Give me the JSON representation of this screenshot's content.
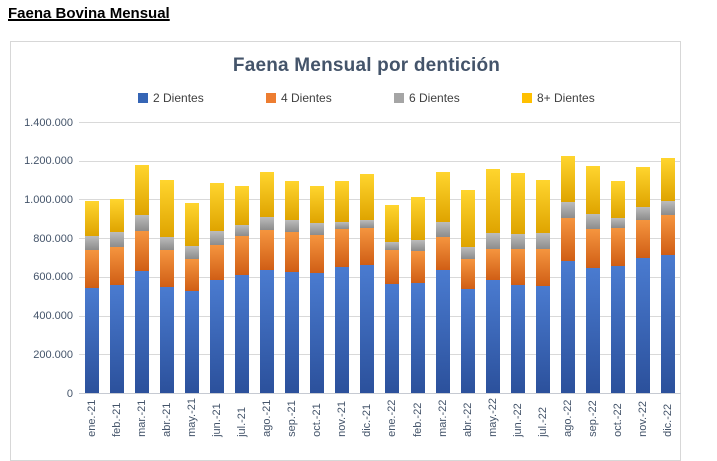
{
  "page": {
    "title": "Faena Bovina Mensual"
  },
  "chart": {
    "title": "Faena Mensual por dentición"
  },
  "chart_data": {
    "type": "bar",
    "stacked": true,
    "title": "Faena Mensual por dentición",
    "xlabel": "",
    "ylabel": "",
    "ylim": [
      0,
      1400000
    ],
    "grid": true,
    "legend_position": "top",
    "categories": [
      "ene.-21",
      "feb.-21",
      "mar.-21",
      "abr.-21",
      "may.-21",
      "jun.-21",
      "jul.-21",
      "ago.-21",
      "sep.-21",
      "oct.-21",
      "nov.-21",
      "dic.-21",
      "ene.-22",
      "feb.-22",
      "mar.-22",
      "abr.-22",
      "may.-22",
      "jun.-22",
      "jul.-22",
      "ago.-22",
      "sep.-22",
      "oct.-22",
      "nov.-22",
      "dic.-22"
    ],
    "y_ticks": [
      {
        "value": 0,
        "label": "0"
      },
      {
        "value": 200000,
        "label": "200.000"
      },
      {
        "value": 400000,
        "label": "400.000"
      },
      {
        "value": 600000,
        "label": "600.000"
      },
      {
        "value": 800000,
        "label": "800.000"
      },
      {
        "value": 1000000,
        "label": "1.000.000"
      },
      {
        "value": 1200000,
        "label": "1.200.000"
      },
      {
        "value": 1400000,
        "label": "1.400.000"
      }
    ],
    "series": [
      {
        "name": "2 Dientes",
        "color": "#3565B5",
        "gradient_light": "#4A7BD0",
        "gradient_dark": "#2B509B",
        "values": [
          550000,
          565000,
          635000,
          555000,
          530000,
          590000,
          615000,
          640000,
          630000,
          625000,
          655000,
          665000,
          570000,
          575000,
          640000,
          540000,
          590000,
          565000,
          560000,
          685000,
          650000,
          660000,
          705000,
          720000
        ]
      },
      {
        "name": "4 Dientes",
        "color": "#ED7D31",
        "gradient_light": "#F5953F",
        "gradient_dark": "#D05E15",
        "values": [
          195000,
          195000,
          205000,
          190000,
          170000,
          180000,
          200000,
          205000,
          205000,
          195000,
          195000,
          195000,
          175000,
          165000,
          170000,
          160000,
          160000,
          185000,
          190000,
          225000,
          200000,
          200000,
          195000,
          205000
        ]
      },
      {
        "name": "6 Dientes",
        "color": "#A5A5A5",
        "gradient_light": "#BCBCBC",
        "gradient_dark": "#8C8C8C",
        "values": [
          70000,
          75000,
          85000,
          65000,
          65000,
          70000,
          60000,
          70000,
          65000,
          65000,
          40000,
          40000,
          40000,
          55000,
          80000,
          60000,
          80000,
          75000,
          80000,
          80000,
          80000,
          50000,
          65000,
          70000
        ]
      },
      {
        "name": "8+ Dientes",
        "color": "#FFC000",
        "gradient_light": "#FFD52E",
        "gradient_dark": "#DFA400",
        "values": [
          180000,
          175000,
          260000,
          295000,
          220000,
          250000,
          200000,
          230000,
          200000,
          190000,
          210000,
          235000,
          190000,
          225000,
          255000,
          295000,
          335000,
          315000,
          275000,
          240000,
          250000,
          190000,
          210000,
          225000
        ]
      }
    ]
  }
}
